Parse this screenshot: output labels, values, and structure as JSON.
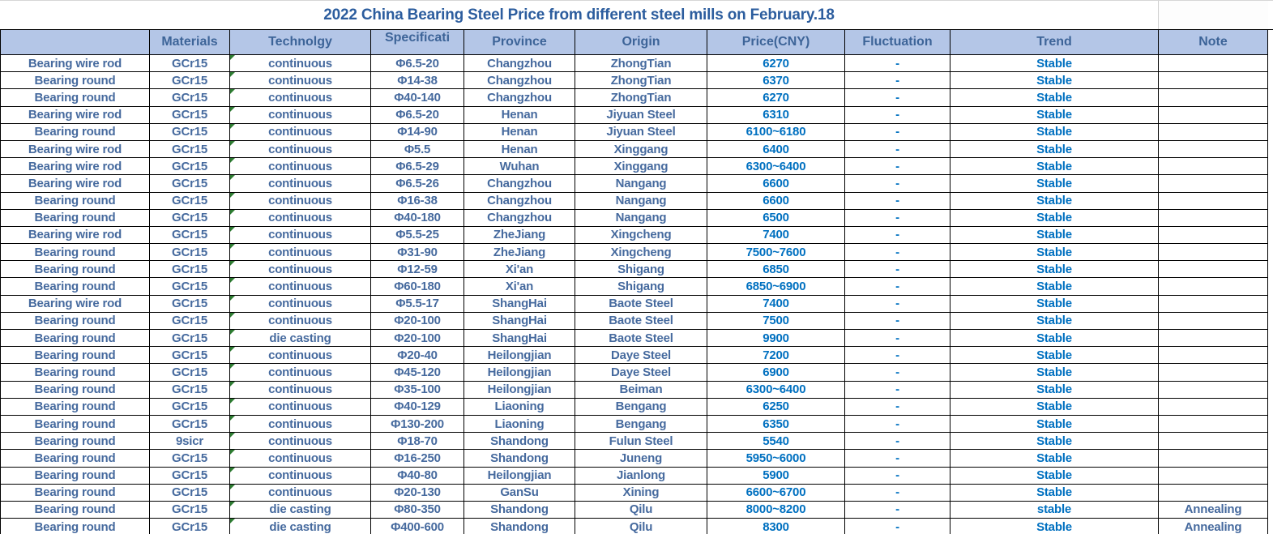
{
  "title": "2022 China Bearing Steel Price from different steel mills on  February.18",
  "colors": {
    "header_background": "#B4C6E7",
    "header_text": "#3D6498",
    "title_text": "#2C5D9E",
    "data_text_dark": "#466A9E",
    "data_text_bright": "#0070C0",
    "grid_border": "#000000",
    "error_indicator_green": "#2E7D32"
  },
  "table": {
    "columns": [
      {
        "key": "product",
        "label": "",
        "style": "dark"
      },
      {
        "key": "materials",
        "label": "Materials",
        "style": "dark"
      },
      {
        "key": "technology",
        "label": "Technolgy",
        "style": "dark"
      },
      {
        "key": "specification",
        "label": "Specificati",
        "style": "dark"
      },
      {
        "key": "province",
        "label": "Province",
        "style": "dark"
      },
      {
        "key": "origin",
        "label": "Origin",
        "style": "dark"
      },
      {
        "key": "price",
        "label": "Price(CNY)",
        "style": "bright"
      },
      {
        "key": "fluctuation",
        "label": "Fluctuation",
        "style": "bright"
      },
      {
        "key": "trend",
        "label": "Trend",
        "style": "bright"
      },
      {
        "key": "note",
        "label": "Note",
        "style": "dark"
      }
    ],
    "error_indicator_column": 2,
    "rows": [
      [
        "Bearing wire rod",
        "GCr15",
        "continuous",
        "Φ6.5-20",
        "Changzhou",
        "ZhongTian",
        "6270",
        "-",
        "Stable",
        ""
      ],
      [
        "Bearing round",
        "GCr15",
        "continuous",
        "Φ14-38",
        "Changzhou",
        "ZhongTian",
        "6370",
        "-",
        "Stable",
        ""
      ],
      [
        "Bearing round",
        "GCr15",
        "continuous",
        "Φ40-140",
        "Changzhou",
        "ZhongTian",
        "6270",
        "-",
        "Stable",
        ""
      ],
      [
        "Bearing wire rod",
        "GCr15",
        "continuous",
        "Φ6.5-20",
        "Henan",
        "Jiyuan Steel",
        "6310",
        "-",
        "Stable",
        ""
      ],
      [
        "Bearing round",
        "GCr15",
        "continuous",
        "Φ14-90",
        "Henan",
        "Jiyuan Steel",
        "6100~6180",
        "-",
        "Stable",
        ""
      ],
      [
        "Bearing wire rod",
        "GCr15",
        "continuous",
        "Φ5.5",
        "Henan",
        "Xinggang",
        "6400",
        "-",
        "Stable",
        ""
      ],
      [
        "Bearing wire rod",
        "GCr15",
        "continuous",
        "Φ6.5-29",
        "Wuhan",
        "Xinggang",
        "6300~6400",
        "-",
        "Stable",
        ""
      ],
      [
        "Bearing wire rod",
        "GCr15",
        "continuous",
        "Φ6.5-26",
        "Changzhou",
        "Nangang",
        "6600",
        "-",
        "Stable",
        ""
      ],
      [
        "Bearing round",
        "GCr15",
        "continuous",
        "Φ16-38",
        "Changzhou",
        "Nangang",
        "6600",
        "-",
        "Stable",
        ""
      ],
      [
        "Bearing round",
        "GCr15",
        "continuous",
        "Φ40-180",
        "Changzhou",
        "Nangang",
        "6500",
        "-",
        "Stable",
        ""
      ],
      [
        "Bearing wire rod",
        "GCr15",
        "continuous",
        "Φ5.5-25",
        "ZheJiang",
        "Xingcheng",
        "7400",
        "-",
        "Stable",
        ""
      ],
      [
        "Bearing round",
        "GCr15",
        "continuous",
        "Φ31-90",
        "ZheJiang",
        "Xingcheng",
        "7500~7600",
        "-",
        "Stable",
        ""
      ],
      [
        "Bearing round",
        "GCr15",
        "continuous",
        "Φ12-59",
        "Xi'an",
        "Shigang",
        "6850",
        "-",
        "Stable",
        ""
      ],
      [
        "Bearing round",
        "GCr15",
        "continuous",
        "Φ60-180",
        "Xi'an",
        "Shigang",
        "6850~6900",
        "-",
        "Stable",
        ""
      ],
      [
        "Bearing wire rod",
        "GCr15",
        "continuous",
        "Φ5.5-17",
        "ShangHai",
        "Baote Steel",
        "7400",
        "-",
        "Stable",
        ""
      ],
      [
        "Bearing round",
        "GCr15",
        "continuous",
        "Φ20-100",
        "ShangHai",
        "Baote Steel",
        "7500",
        "-",
        "Stable",
        ""
      ],
      [
        "Bearing round",
        "GCr15",
        "die casting",
        "Φ20-100",
        "ShangHai",
        "Baote Steel",
        "9900",
        "-",
        "Stable",
        ""
      ],
      [
        "Bearing round",
        "GCr15",
        "continuous",
        "Φ20-40",
        "Heilongjian",
        "Daye Steel",
        "7200",
        "-",
        "Stable",
        ""
      ],
      [
        "Bearing round",
        "GCr15",
        "continuous",
        "Φ45-120",
        "Heilongjian",
        "Daye Steel",
        "6900",
        "-",
        "Stable",
        ""
      ],
      [
        "Bearing round",
        "GCr15",
        "continuous",
        "Φ35-100",
        "Heilongjian",
        "Beiman",
        "6300~6400",
        "-",
        "Stable",
        ""
      ],
      [
        "Bearing round",
        "GCr15",
        "continuous",
        "Φ40-129",
        "Liaoning",
        "Bengang",
        "6250",
        "-",
        "Stable",
        ""
      ],
      [
        "Bearing round",
        "GCr15",
        "continuous",
        "Φ130-200",
        "Liaoning",
        "Bengang",
        "6350",
        "-",
        "Stable",
        ""
      ],
      [
        "Bearing round",
        "9sicr",
        "continuous",
        "Φ18-70",
        "Shandong",
        "Fulun Steel",
        "5540",
        "-",
        "Stable",
        ""
      ],
      [
        "Bearing round",
        "GCr15",
        "continuous",
        "Φ16-250",
        "Shandong",
        "Juneng",
        "5950~6000",
        "-",
        "Stable",
        ""
      ],
      [
        "Bearing round",
        "GCr15",
        "continuous",
        "Φ40-80",
        "Heilongjian",
        "Jianlong",
        "5900",
        "-",
        "Stable",
        ""
      ],
      [
        "Bearing round",
        "GCr15",
        "continuous",
        "Φ20-130",
        "GanSu",
        "Xining",
        "6600~6700",
        "-",
        "Stable",
        ""
      ],
      [
        "Bearing round",
        "GCr15",
        "die casting",
        "Φ80-350",
        "Shandong",
        "Qilu",
        "8000~8200",
        "-",
        "stable",
        "Annealing"
      ],
      [
        "Bearing round",
        "GCr15",
        "die casting",
        "Φ400-600",
        "Shandong",
        "Qilu",
        "8300",
        "-",
        "Stable",
        "Annealing"
      ]
    ]
  }
}
